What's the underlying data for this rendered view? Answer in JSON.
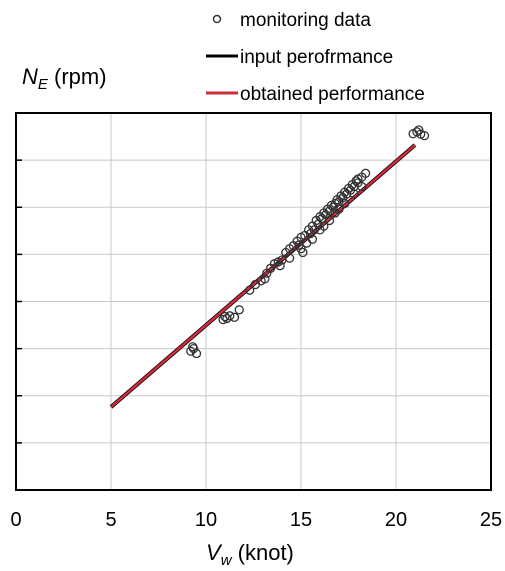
{
  "chart_data": {
    "type": "scatter",
    "xlabel": {
      "symbol": "V",
      "subscript": "w",
      "unit": " (knot)"
    },
    "ylabel": {
      "symbol": "N",
      "subscript": "E",
      "unit": " (rpm)"
    },
    "xlim": [
      0,
      25
    ],
    "x_ticks": [
      0,
      5,
      10,
      15,
      20,
      25
    ],
    "y_gridlines": 8,
    "y_tick_labels_shown": false,
    "grid": true,
    "legend_position": "top-right",
    "series": [
      {
        "name": "monitoring data",
        "kind": "scatter",
        "marker": "open-circle",
        "color": "#333333",
        "points": [
          [
            9.2,
            0.368
          ],
          [
            9.35,
            0.375
          ],
          [
            9.5,
            0.362
          ],
          [
            9.3,
            0.38
          ],
          [
            10.9,
            0.452
          ],
          [
            11.0,
            0.46
          ],
          [
            11.1,
            0.455
          ],
          [
            11.25,
            0.462
          ],
          [
            11.5,
            0.458
          ],
          [
            11.75,
            0.478
          ],
          [
            12.3,
            0.53
          ],
          [
            12.6,
            0.545
          ],
          [
            12.9,
            0.555
          ],
          [
            13.2,
            0.575
          ],
          [
            13.4,
            0.588
          ],
          [
            13.6,
            0.6
          ],
          [
            13.8,
            0.605
          ],
          [
            14.0,
            0.61
          ],
          [
            14.2,
            0.63
          ],
          [
            14.4,
            0.64
          ],
          [
            14.6,
            0.648
          ],
          [
            14.8,
            0.66
          ],
          [
            15.0,
            0.67
          ],
          [
            15.0,
            0.64
          ],
          [
            15.2,
            0.675
          ],
          [
            15.3,
            0.655
          ],
          [
            15.4,
            0.69
          ],
          [
            15.5,
            0.68
          ],
          [
            15.6,
            0.7
          ],
          [
            15.7,
            0.69
          ],
          [
            15.8,
            0.715
          ],
          [
            15.9,
            0.705
          ],
          [
            16.0,
            0.725
          ],
          [
            16.1,
            0.72
          ],
          [
            16.2,
            0.735
          ],
          [
            16.3,
            0.73
          ],
          [
            16.4,
            0.745
          ],
          [
            16.5,
            0.74
          ],
          [
            16.6,
            0.755
          ],
          [
            16.7,
            0.75
          ],
          [
            16.8,
            0.76
          ],
          [
            16.9,
            0.77
          ],
          [
            17.0,
            0.765
          ],
          [
            17.1,
            0.78
          ],
          [
            17.2,
            0.775
          ],
          [
            17.3,
            0.79
          ],
          [
            17.4,
            0.785
          ],
          [
            17.5,
            0.8
          ],
          [
            17.6,
            0.795
          ],
          [
            17.7,
            0.81
          ],
          [
            17.8,
            0.805
          ],
          [
            17.9,
            0.82
          ],
          [
            18.0,
            0.815
          ],
          [
            18.2,
            0.83
          ],
          [
            18.4,
            0.84
          ],
          [
            14.4,
            0.615
          ],
          [
            15.1,
            0.63
          ],
          [
            15.6,
            0.665
          ],
          [
            16.2,
            0.7
          ],
          [
            16.8,
            0.735
          ],
          [
            17.3,
            0.76
          ],
          [
            17.8,
            0.785
          ],
          [
            18.2,
            0.805
          ],
          [
            16.5,
            0.715
          ],
          [
            16.0,
            0.69
          ],
          [
            14.9,
            0.65
          ],
          [
            13.9,
            0.595
          ],
          [
            13.1,
            0.56
          ],
          [
            17.0,
            0.745
          ],
          [
            18.0,
            0.825
          ],
          [
            20.9,
            0.945
          ],
          [
            21.1,
            0.95
          ],
          [
            21.3,
            0.944
          ],
          [
            21.5,
            0.94
          ],
          [
            21.2,
            0.955
          ]
        ]
      },
      {
        "name": "input perofrmance",
        "kind": "line",
        "color": "#000000",
        "x": [
          5,
          21
        ],
        "y": [
          0.22,
          0.915
        ]
      },
      {
        "name": "obtained performance",
        "kind": "line",
        "color": "#d02b3a",
        "x": [
          5,
          21
        ],
        "y": [
          0.22,
          0.915
        ]
      }
    ]
  }
}
